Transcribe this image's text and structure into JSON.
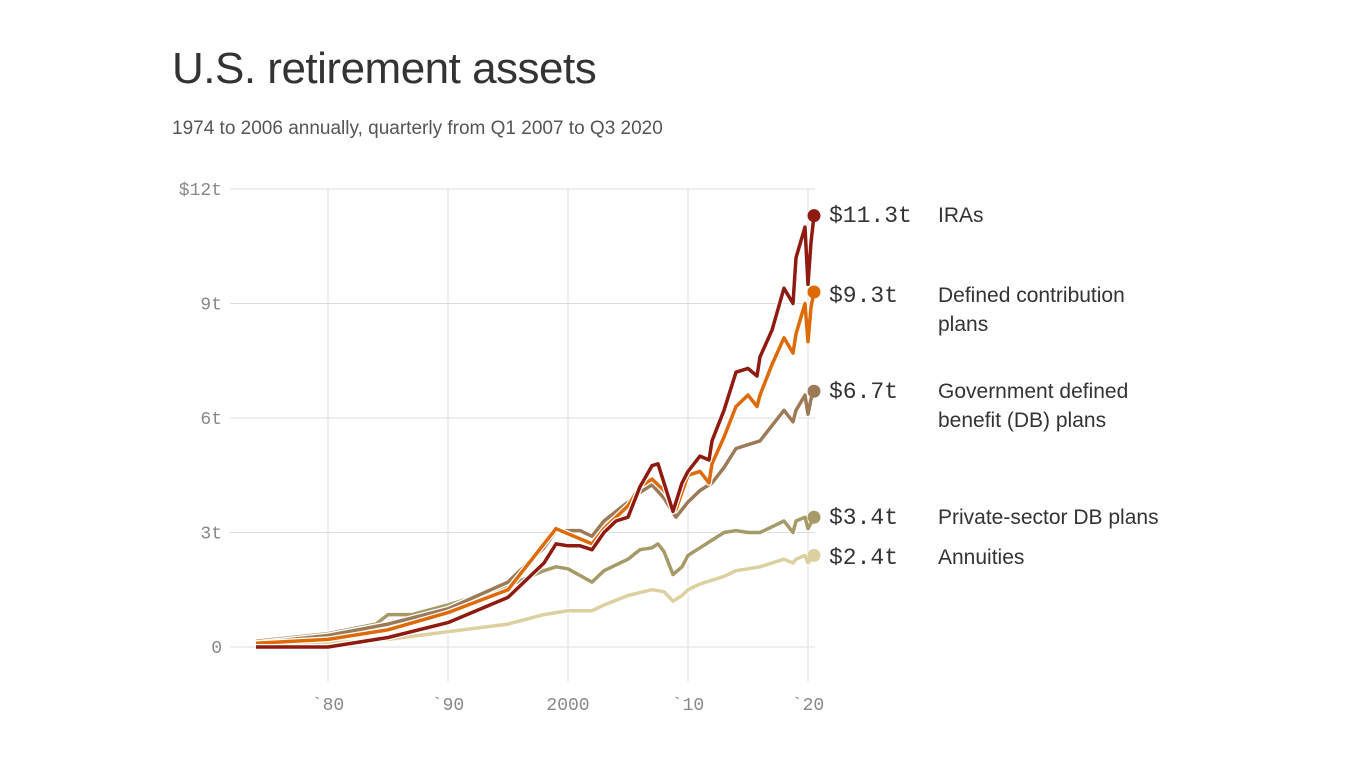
{
  "chart_data": {
    "type": "line",
    "title": "U.S. retirement assets",
    "subtitle": "1974 to 2006 annually, quarterly from Q1 2007 to Q3 2020",
    "xlim": [
      1974,
      2020.5
    ],
    "ylim": [
      0,
      12
    ],
    "y_ticks": [
      {
        "v": 0,
        "label": "0"
      },
      {
        "v": 3,
        "label": "3t"
      },
      {
        "v": 6,
        "label": "6t"
      },
      {
        "v": 9,
        "label": "9t"
      },
      {
        "v": 12,
        "label": "$12t"
      }
    ],
    "x_ticks": [
      {
        "v": 1980,
        "label": "`80"
      },
      {
        "v": 1990,
        "label": "`90"
      },
      {
        "v": 2000,
        "label": "2000"
      },
      {
        "v": 2010,
        "label": "`10"
      },
      {
        "v": 2020,
        "label": "`20"
      }
    ],
    "grid": true,
    "series": [
      {
        "name": "Annuities",
        "end_label": "$2.4t",
        "label_lines": [
          "Annuities"
        ],
        "color": "#dccfa0",
        "points": [
          [
            1974,
            0.05
          ],
          [
            1980,
            0.1
          ],
          [
            1985,
            0.2
          ],
          [
            1990,
            0.4
          ],
          [
            1995,
            0.6
          ],
          [
            1998,
            0.85
          ],
          [
            2000,
            0.95
          ],
          [
            2002,
            0.95
          ],
          [
            2003,
            1.1
          ],
          [
            2005,
            1.35
          ],
          [
            2007,
            1.5
          ],
          [
            2008,
            1.45
          ],
          [
            2008.75,
            1.2
          ],
          [
            2009.5,
            1.35
          ],
          [
            2010,
            1.5
          ],
          [
            2011,
            1.65
          ],
          [
            2012,
            1.75
          ],
          [
            2013,
            1.85
          ],
          [
            2014,
            2.0
          ],
          [
            2015,
            2.05
          ],
          [
            2016,
            2.1
          ],
          [
            2017,
            2.2
          ],
          [
            2018,
            2.3
          ],
          [
            2018.75,
            2.2
          ],
          [
            2019,
            2.3
          ],
          [
            2019.75,
            2.4
          ],
          [
            2020,
            2.2
          ],
          [
            2020.5,
            2.4
          ]
        ]
      },
      {
        "name": "Private-sector DB plans",
        "end_label": "$3.4t",
        "label_lines": [
          "Private-sector DB plans"
        ],
        "color": "#a69a68",
        "points": [
          [
            1974,
            0.15
          ],
          [
            1980,
            0.35
          ],
          [
            1984,
            0.6
          ],
          [
            1985,
            0.85
          ],
          [
            1987,
            0.85
          ],
          [
            1990,
            1.1
          ],
          [
            1995,
            1.6
          ],
          [
            1998,
            2.0
          ],
          [
            1999,
            2.1
          ],
          [
            2000,
            2.05
          ],
          [
            2002,
            1.7
          ],
          [
            2003,
            2.0
          ],
          [
            2005,
            2.3
          ],
          [
            2006,
            2.55
          ],
          [
            2007,
            2.6
          ],
          [
            2007.5,
            2.7
          ],
          [
            2008,
            2.5
          ],
          [
            2008.75,
            1.9
          ],
          [
            2009.5,
            2.1
          ],
          [
            2010,
            2.4
          ],
          [
            2011,
            2.6
          ],
          [
            2012,
            2.8
          ],
          [
            2013,
            3.0
          ],
          [
            2014,
            3.05
          ],
          [
            2015,
            3.0
          ],
          [
            2016,
            3.0
          ],
          [
            2017,
            3.15
          ],
          [
            2018,
            3.3
          ],
          [
            2018.75,
            3.0
          ],
          [
            2019,
            3.3
          ],
          [
            2019.75,
            3.4
          ],
          [
            2020,
            3.1
          ],
          [
            2020.5,
            3.4
          ]
        ]
      },
      {
        "name": "Government defined benefit (DB) plans",
        "end_label": "$6.7t",
        "label_lines": [
          "Government defined",
          "benefit (DB) plans"
        ],
        "color": "#9c7a57",
        "points": [
          [
            1974,
            0.1
          ],
          [
            1980,
            0.3
          ],
          [
            1985,
            0.6
          ],
          [
            1990,
            1.0
          ],
          [
            1995,
            1.7
          ],
          [
            1998,
            2.6
          ],
          [
            1999,
            3.05
          ],
          [
            2001,
            3.05
          ],
          [
            2002,
            2.9
          ],
          [
            2003,
            3.3
          ],
          [
            2005,
            3.8
          ],
          [
            2006,
            4.05
          ],
          [
            2007,
            4.25
          ],
          [
            2008,
            3.9
          ],
          [
            2009,
            3.4
          ],
          [
            2010,
            3.8
          ],
          [
            2011,
            4.1
          ],
          [
            2012,
            4.3
          ],
          [
            2013,
            4.7
          ],
          [
            2014,
            5.2
          ],
          [
            2015,
            5.3
          ],
          [
            2016,
            5.4
          ],
          [
            2017,
            5.8
          ],
          [
            2018,
            6.2
          ],
          [
            2018.75,
            5.9
          ],
          [
            2019,
            6.2
          ],
          [
            2019.75,
            6.6
          ],
          [
            2020,
            6.1
          ],
          [
            2020.25,
            6.5
          ],
          [
            2020.5,
            6.7
          ]
        ]
      },
      {
        "name": "Defined contribution plans",
        "end_label": "$9.3t",
        "label_lines": [
          "Defined contribution",
          "plans"
        ],
        "color": "#de6a05",
        "points": [
          [
            1974,
            0.1
          ],
          [
            1980,
            0.2
          ],
          [
            1985,
            0.45
          ],
          [
            1990,
            0.9
          ],
          [
            1995,
            1.5
          ],
          [
            1997,
            2.3
          ],
          [
            1999,
            3.1
          ],
          [
            2002,
            2.7
          ],
          [
            2003,
            3.1
          ],
          [
            2005,
            3.7
          ],
          [
            2006,
            4.2
          ],
          [
            2007,
            4.4
          ],
          [
            2008,
            4.1
          ],
          [
            2009,
            3.6
          ],
          [
            2010,
            4.5
          ],
          [
            2011,
            4.6
          ],
          [
            2011.75,
            4.3
          ],
          [
            2012,
            4.8
          ],
          [
            2013,
            5.5
          ],
          [
            2014,
            6.3
          ],
          [
            2015,
            6.6
          ],
          [
            2015.75,
            6.3
          ],
          [
            2016,
            6.6
          ],
          [
            2017,
            7.4
          ],
          [
            2018,
            8.1
          ],
          [
            2018.75,
            7.7
          ],
          [
            2019,
            8.2
          ],
          [
            2019.75,
            9.0
          ],
          [
            2020,
            8.0
          ],
          [
            2020.25,
            8.9
          ],
          [
            2020.5,
            9.3
          ]
        ]
      },
      {
        "name": "IRAs",
        "end_label": "$11.3t",
        "label_lines": [
          "IRAs"
        ],
        "color": "#8f1a10",
        "points": [
          [
            1974,
            0
          ],
          [
            1980,
            0
          ],
          [
            1981,
            0.05
          ],
          [
            1985,
            0.25
          ],
          [
            1990,
            0.64
          ],
          [
            1995,
            1.3
          ],
          [
            1998,
            2.2
          ],
          [
            1999,
            2.7
          ],
          [
            2000,
            2.65
          ],
          [
            2001,
            2.65
          ],
          [
            2002,
            2.55
          ],
          [
            2003,
            3.0
          ],
          [
            2004,
            3.3
          ],
          [
            2005,
            3.4
          ],
          [
            2006,
            4.2
          ],
          [
            2007,
            4.75
          ],
          [
            2007.5,
            4.8
          ],
          [
            2008,
            4.3
          ],
          [
            2008.75,
            3.55
          ],
          [
            2009.5,
            4.3
          ],
          [
            2010,
            4.6
          ],
          [
            2011,
            5.0
          ],
          [
            2011.75,
            4.9
          ],
          [
            2012,
            5.4
          ],
          [
            2013,
            6.2
          ],
          [
            2014,
            7.2
          ],
          [
            2015,
            7.3
          ],
          [
            2015.75,
            7.1
          ],
          [
            2016,
            7.6
          ],
          [
            2017,
            8.3
          ],
          [
            2018,
            9.4
          ],
          [
            2018.75,
            9.0
          ],
          [
            2019,
            10.2
          ],
          [
            2019.75,
            11.0
          ],
          [
            2020,
            9.5
          ],
          [
            2020.25,
            10.6
          ],
          [
            2020.5,
            11.3
          ]
        ]
      }
    ]
  }
}
